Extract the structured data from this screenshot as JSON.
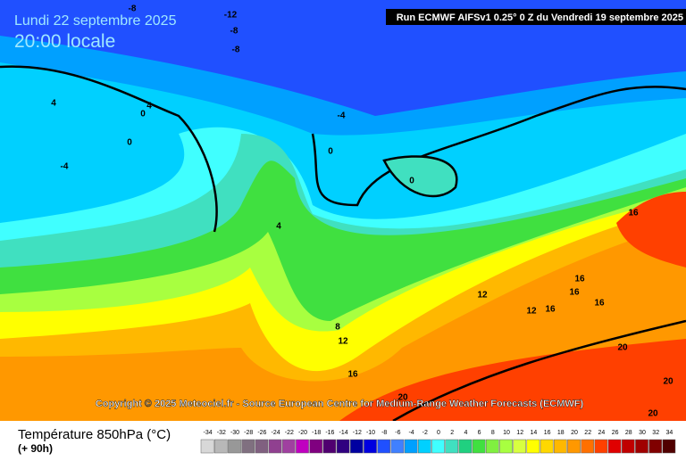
{
  "header": {
    "date": "Lundi 22 septembre 2025",
    "time": "20:00 locale",
    "run": "Run ECMWF AIFSv1 0.25° 0 Z du Vendredi 19 septembre 2025"
  },
  "copyright": "Copyright © 2025 Meteociel.fr - Source European Centre for Medium-Range Weather Forecasts (ECMWF)",
  "legend": {
    "title": "Température 850hPa (°C)",
    "subtitle": "(+ 90h)",
    "ticks": [
      -34,
      -32,
      -30,
      -28,
      -26,
      -24,
      -22,
      -20,
      -18,
      -16,
      -14,
      -12,
      -10,
      -8,
      -6,
      -4,
      -2,
      0,
      2,
      4,
      6,
      8,
      10,
      12,
      14,
      16,
      18,
      20,
      22,
      24,
      26,
      28,
      30,
      32,
      34
    ],
    "colors": [
      "#d8d8d8",
      "#b8b8b8",
      "#989898",
      "#807080",
      "#806080",
      "#904090",
      "#a040a0",
      "#c000c0",
      "#800080",
      "#500070",
      "#300080",
      "#0000a0",
      "#0000e0",
      "#2050ff",
      "#4080ff",
      "#00a0ff",
      "#00d0ff",
      "#40ffff",
      "#40e0c0",
      "#20d080",
      "#40e040",
      "#80f040",
      "#a8ff40",
      "#d8ff40",
      "#ffff00",
      "#ffd800",
      "#ffb800",
      "#ff9800",
      "#ff7000",
      "#ff4000",
      "#e00000",
      "#c00000",
      "#a00000",
      "#800000",
      "#500000"
    ]
  },
  "contour_labels": [
    -8,
    -12,
    -8,
    -8,
    4,
    0,
    4,
    0,
    -4,
    -4,
    0,
    0,
    4,
    16,
    16,
    12,
    16,
    16,
    12,
    16,
    8,
    12,
    16,
    20,
    20,
    20,
    20
  ]
}
